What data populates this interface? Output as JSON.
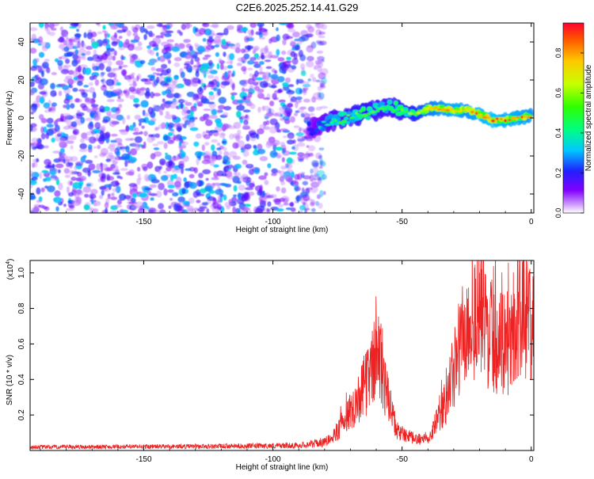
{
  "page": {
    "title": "C2E6.2025.252.14.41.G29"
  },
  "chart_data": [
    {
      "type": "heatmap",
      "xlabel": "Height of straight line (km)",
      "ylabel": "Frequency (Hz)",
      "xlim": [
        -194,
        1
      ],
      "ylim": [
        -50,
        50
      ],
      "xticks": [
        -150,
        -100,
        -50,
        0
      ],
      "yticks": [
        -40,
        -20,
        0,
        20,
        40
      ],
      "colorbar": {
        "label": "Normalized spectral amplitude",
        "range": [
          0,
          0.95
        ],
        "ticks": [
          "0.0",
          "0.2",
          "0.4",
          "0.6",
          "0.8"
        ],
        "tick_values": [
          0,
          0.2,
          0.4,
          0.6,
          0.8
        ]
      },
      "noise_region": {
        "x_range": [
          -194,
          -86
        ],
        "amplitude": [
          0.05,
          0.35
        ]
      },
      "ridge": [
        {
          "x": -86,
          "y": -6,
          "amp": 0.25
        },
        {
          "x": -82,
          "y": -4,
          "amp": 0.35
        },
        {
          "x": -78,
          "y": -2,
          "amp": 0.45
        },
        {
          "x": -72,
          "y": 0,
          "amp": 0.5
        },
        {
          "x": -66,
          "y": 2,
          "amp": 0.55
        },
        {
          "x": -60,
          "y": 4,
          "amp": 0.5
        },
        {
          "x": -55,
          "y": 6,
          "amp": 0.5
        },
        {
          "x": -50,
          "y": 4,
          "amp": 0.55
        },
        {
          "x": -45,
          "y": 2,
          "amp": 0.6
        },
        {
          "x": -40,
          "y": 5,
          "amp": 0.75
        },
        {
          "x": -35,
          "y": 5,
          "amp": 0.8
        },
        {
          "x": -30,
          "y": 4,
          "amp": 0.85
        },
        {
          "x": -25,
          "y": 4,
          "amp": 0.8
        },
        {
          "x": -20,
          "y": 2,
          "amp": 0.85
        },
        {
          "x": -15,
          "y": -1,
          "amp": 0.9
        },
        {
          "x": -10,
          "y": -1,
          "amp": 0.85
        },
        {
          "x": -5,
          "y": 0,
          "amp": 0.85
        },
        {
          "x": 0,
          "y": 1,
          "amp": 0.8
        }
      ],
      "colors": {
        "ridge_peak": "#ff2000",
        "noise": "#8a20ff"
      }
    },
    {
      "type": "line",
      "xlabel": "Height of straight line (km)",
      "ylabel": "SNR (10 * v/v)",
      "y_scale_label": "(x10",
      "y_scale_exp": "4",
      "y_scale_close": ")",
      "xlim": [
        -194,
        1
      ],
      "ylim": [
        0,
        1.07
      ],
      "xticks": [
        -150,
        -100,
        -50,
        0
      ],
      "yticks": [
        0.2,
        0.4,
        0.6,
        0.8,
        1
      ],
      "ytick_labels": [
        "0.2",
        "0.4",
        "0.6",
        "0.8",
        "1.0"
      ],
      "color": "#ee2222",
      "envelope": [
        {
          "x": -194,
          "y": 0.02
        },
        {
          "x": -120,
          "y": 0.025
        },
        {
          "x": -90,
          "y": 0.03
        },
        {
          "x": -80,
          "y": 0.05
        },
        {
          "x": -75,
          "y": 0.12
        },
        {
          "x": -70,
          "y": 0.25
        },
        {
          "x": -66,
          "y": 0.35
        },
        {
          "x": -62,
          "y": 0.5
        },
        {
          "x": -59,
          "y": 0.62
        },
        {
          "x": -56,
          "y": 0.35
        },
        {
          "x": -52,
          "y": 0.12
        },
        {
          "x": -45,
          "y": 0.07
        },
        {
          "x": -40,
          "y": 0.08
        },
        {
          "x": -36,
          "y": 0.2
        },
        {
          "x": -33,
          "y": 0.3
        },
        {
          "x": -30,
          "y": 0.5
        },
        {
          "x": -27,
          "y": 0.7
        },
        {
          "x": -23,
          "y": 0.8
        },
        {
          "x": -20,
          "y": 0.85
        },
        {
          "x": -15,
          "y": 0.72
        },
        {
          "x": -10,
          "y": 0.65
        },
        {
          "x": -6,
          "y": 0.78
        },
        {
          "x": -3,
          "y": 0.9
        },
        {
          "x": 1,
          "y": 0.72
        }
      ]
    }
  ]
}
